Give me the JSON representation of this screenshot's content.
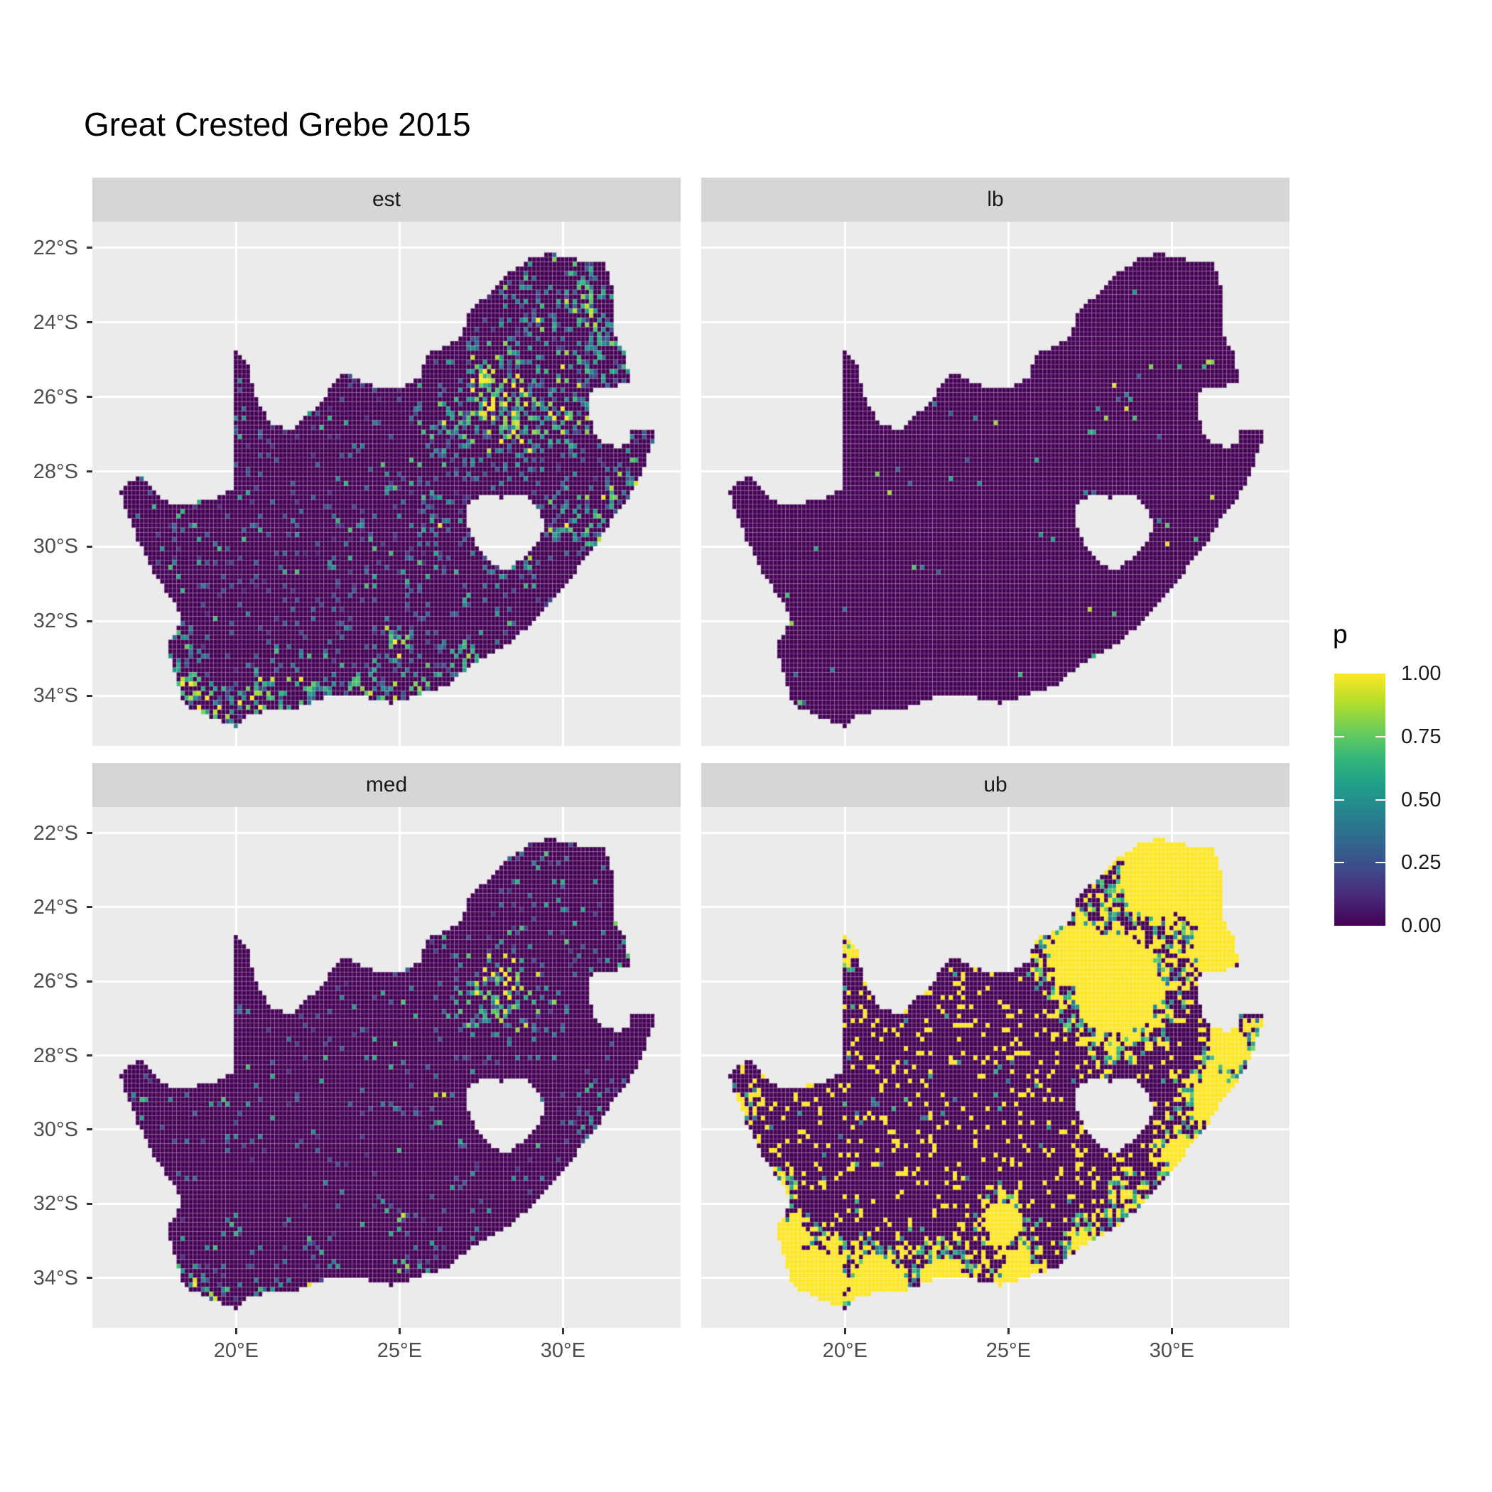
{
  "chart_data": {
    "type": "heatmap",
    "subtype": "faceted-raster-map",
    "title": "Great Crested Grebe 2015",
    "region": "South Africa",
    "facets": [
      {
        "label": "est"
      },
      {
        "label": "lb"
      },
      {
        "label": "med"
      },
      {
        "label": "ub"
      }
    ],
    "axes": {
      "x": {
        "range_deg_east": [
          15.6,
          33.6
        ],
        "ticks": [
          {
            "value": 20,
            "label": "20°E"
          },
          {
            "value": 25,
            "label": "25°E"
          },
          {
            "value": 30,
            "label": "30°E"
          }
        ]
      },
      "y": {
        "range_deg_south": [
          21.3,
          35.35
        ],
        "ticks": [
          {
            "value": 22,
            "label": "22°S"
          },
          {
            "value": 24,
            "label": "24°S"
          },
          {
            "value": 26,
            "label": "26°S"
          },
          {
            "value": 28,
            "label": "28°S"
          },
          {
            "value": 30,
            "label": "30°S"
          },
          {
            "value": 32,
            "label": "32°S"
          },
          {
            "value": 34,
            "label": "34°S"
          }
        ]
      }
    },
    "legend": {
      "title": "p",
      "min": 0,
      "max": 1,
      "ticks": [
        {
          "value": 1.0,
          "label": "1.00"
        },
        {
          "value": 0.75,
          "label": "0.75"
        },
        {
          "value": 0.5,
          "label": "0.50"
        },
        {
          "value": 0.25,
          "label": "0.25"
        },
        {
          "value": 0.0,
          "label": "0.00"
        }
      ],
      "palette": "viridis"
    },
    "colors": {
      "panel_bg": "#ebebeb",
      "strip_bg": "#d6d6d6",
      "grid": "#ffffff",
      "title_text": "#000000",
      "strip_text": "#1a1a1a",
      "axis_text": "#4d4d4d",
      "tick_mark": "#333333",
      "viridis_stops": [
        "#440154",
        "#482878",
        "#3e4989",
        "#31688e",
        "#26828e",
        "#1f9e89",
        "#35b779",
        "#6ece58",
        "#b5de2b",
        "#fde725"
      ]
    },
    "cell_size_deg": 0.125,
    "outline_lon_lat": [
      [
        16.45,
        -28.58
      ],
      [
        16.8,
        -28.25
      ],
      [
        17.15,
        -28.1
      ],
      [
        17.45,
        -28.4
      ],
      [
        17.75,
        -28.75
      ],
      [
        18.25,
        -28.9
      ],
      [
        18.85,
        -28.8
      ],
      [
        19.4,
        -28.7
      ],
      [
        19.98,
        -28.45
      ],
      [
        19.98,
        -24.77
      ],
      [
        20.35,
        -25.1
      ],
      [
        20.5,
        -25.65
      ],
      [
        20.65,
        -26.1
      ],
      [
        21.05,
        -26.7
      ],
      [
        21.7,
        -26.9
      ],
      [
        22.25,
        -26.4
      ],
      [
        22.7,
        -26.1
      ],
      [
        22.9,
        -25.65
      ],
      [
        23.3,
        -25.35
      ],
      [
        23.85,
        -25.6
      ],
      [
        24.45,
        -25.75
      ],
      [
        25.05,
        -25.73
      ],
      [
        25.6,
        -25.47
      ],
      [
        25.92,
        -24.78
      ],
      [
        26.5,
        -24.65
      ],
      [
        26.9,
        -24.3
      ],
      [
        27.2,
        -23.6
      ],
      [
        27.8,
        -23.22
      ],
      [
        28.35,
        -22.68
      ],
      [
        29.1,
        -22.22
      ],
      [
        29.7,
        -22.15
      ],
      [
        30.3,
        -22.3
      ],
      [
        31.3,
        -22.4
      ],
      [
        31.55,
        -23.2
      ],
      [
        31.55,
        -24.3
      ],
      [
        31.95,
        -24.9
      ],
      [
        32.02,
        -25.65
      ],
      [
        31.4,
        -25.72
      ],
      [
        30.82,
        -25.85
      ],
      [
        30.78,
        -26.4
      ],
      [
        30.95,
        -26.9
      ],
      [
        31.15,
        -27.2
      ],
      [
        31.6,
        -27.32
      ],
      [
        31.97,
        -27.3
      ],
      [
        32.12,
        -26.85
      ],
      [
        32.89,
        -26.86
      ],
      [
        32.55,
        -27.65
      ],
      [
        32.3,
        -28.35
      ],
      [
        31.75,
        -28.95
      ],
      [
        31.05,
        -29.9
      ],
      [
        30.4,
        -30.65
      ],
      [
        29.75,
        -31.35
      ],
      [
        29.0,
        -32.1
      ],
      [
        28.2,
        -32.7
      ],
      [
        27.35,
        -33.1
      ],
      [
        26.4,
        -33.75
      ],
      [
        25.65,
        -33.95
      ],
      [
        24.8,
        -34.2
      ],
      [
        23.65,
        -33.98
      ],
      [
        22.5,
        -34.08
      ],
      [
        21.75,
        -34.4
      ],
      [
        20.5,
        -34.45
      ],
      [
        20.0,
        -34.82
      ],
      [
        19.3,
        -34.62
      ],
      [
        18.8,
        -34.4
      ],
      [
        18.45,
        -34.3
      ],
      [
        18.35,
        -34.05
      ],
      [
        18.05,
        -33.2
      ],
      [
        17.85,
        -32.75
      ],
      [
        18.3,
        -32.05
      ],
      [
        18.2,
        -31.6
      ],
      [
        17.6,
        -30.9
      ],
      [
        17.05,
        -29.95
      ],
      [
        16.75,
        -29.3
      ],
      [
        16.45,
        -28.58
      ]
    ],
    "hole_lesotho_lon_lat": [
      [
        27.02,
        -28.92
      ],
      [
        27.55,
        -28.6
      ],
      [
        28.15,
        -28.7
      ],
      [
        28.72,
        -28.55
      ],
      [
        29.15,
        -28.92
      ],
      [
        29.45,
        -29.32
      ],
      [
        29.33,
        -29.78
      ],
      [
        28.95,
        -30.18
      ],
      [
        28.3,
        -30.62
      ],
      [
        28.05,
        -30.55
      ],
      [
        27.72,
        -30.38
      ],
      [
        27.35,
        -29.95
      ],
      [
        27.05,
        -29.45
      ]
    ],
    "facet_fields": {
      "est": {
        "seed": 11,
        "mode": "spread",
        "gain": 0.6,
        "speckle": 0.05,
        "hotspots": [
          [
            28.1,
            -26.15,
            1.25,
            1.0
          ],
          [
            27.6,
            -25.7,
            0.8,
            0.8
          ],
          [
            28.6,
            -24.9,
            0.9,
            0.45
          ],
          [
            29.9,
            -26.5,
            0.9,
            0.5
          ],
          [
            28.9,
            -26.9,
            1.0,
            0.65
          ],
          [
            26.9,
            -26.9,
            0.9,
            0.6
          ],
          [
            29.3,
            -23.6,
            1.1,
            0.45
          ],
          [
            30.9,
            -23.3,
            1.0,
            0.5
          ],
          [
            31.2,
            -24.8,
            0.9,
            0.5
          ],
          [
            30.2,
            -25.5,
            0.8,
            0.5
          ],
          [
            31.0,
            -29.6,
            0.8,
            0.6
          ],
          [
            31.7,
            -28.5,
            0.7,
            0.5
          ],
          [
            30.1,
            -29.4,
            0.6,
            0.5
          ],
          [
            26.2,
            -29.1,
            0.45,
            0.55
          ],
          [
            24.9,
            -32.55,
            0.45,
            0.8
          ],
          [
            18.55,
            -33.95,
            0.65,
            0.9
          ],
          [
            19.4,
            -34.5,
            0.8,
            0.7
          ],
          [
            20.8,
            -34.3,
            0.9,
            0.6
          ],
          [
            22.3,
            -34.05,
            0.8,
            0.6
          ],
          [
            23.9,
            -33.95,
            0.7,
            0.55
          ],
          [
            25.5,
            -33.85,
            0.7,
            0.6
          ],
          [
            27.0,
            -33.1,
            0.7,
            0.5
          ],
          [
            18.2,
            -32.6,
            0.5,
            0.45
          ],
          [
            28.4,
            -30.4,
            0.7,
            0.4
          ]
        ]
      },
      "lb": {
        "seed": 22,
        "mode": "sparse",
        "gain": 0.25,
        "speckle": 0.006,
        "hotspots": [
          [
            28.15,
            -26.1,
            0.8,
            0.55
          ],
          [
            18.6,
            -34.0,
            0.5,
            0.3
          ],
          [
            20.8,
            -34.3,
            0.6,
            0.25
          ],
          [
            25.5,
            -33.9,
            0.5,
            0.25
          ],
          [
            31.0,
            -29.7,
            0.5,
            0.25
          ],
          [
            31.3,
            -24.9,
            0.6,
            0.2
          ]
        ]
      },
      "med": {
        "seed": 33,
        "mode": "spread",
        "gain": 0.42,
        "speckle": 0.022,
        "hotspots": [
          [
            28.1,
            -26.15,
            1.1,
            0.9
          ],
          [
            27.0,
            -26.9,
            0.8,
            0.45
          ],
          [
            29.0,
            -26.6,
            0.8,
            0.45
          ],
          [
            29.4,
            -23.7,
            1.0,
            0.3
          ],
          [
            31.0,
            -24.9,
            0.9,
            0.33
          ],
          [
            31.0,
            -29.6,
            0.7,
            0.45
          ],
          [
            26.2,
            -29.1,
            0.4,
            0.4
          ],
          [
            24.9,
            -32.55,
            0.45,
            0.6
          ],
          [
            18.55,
            -33.95,
            0.6,
            0.65
          ],
          [
            20.8,
            -34.3,
            0.8,
            0.45
          ],
          [
            22.3,
            -34.05,
            0.7,
            0.42
          ],
          [
            25.5,
            -33.85,
            0.6,
            0.45
          ],
          [
            19.4,
            -34.5,
            0.7,
            0.5
          ],
          [
            27.0,
            -33.15,
            0.5,
            0.35
          ]
        ]
      },
      "ub": {
        "seed": 44,
        "mode": "binary",
        "gain": 1.0,
        "speckle": 0.1,
        "hotspots": [
          [
            28.3,
            -26.1,
            1.7,
            1.0
          ],
          [
            27.2,
            -25.3,
            1.2,
            0.9
          ],
          [
            29.5,
            -23.2,
            1.6,
            0.85
          ],
          [
            31.0,
            -23.5,
            1.4,
            0.85
          ],
          [
            31.4,
            -25.0,
            1.2,
            0.8
          ],
          [
            30.5,
            -22.7,
            1.2,
            0.85
          ],
          [
            31.8,
            -27.8,
            1.0,
            0.75
          ],
          [
            31.3,
            -29.2,
            1.1,
            0.8
          ],
          [
            30.3,
            -30.6,
            0.9,
            0.7
          ],
          [
            28.6,
            -32.0,
            0.8,
            0.5
          ],
          [
            24.85,
            -32.5,
            0.75,
            0.95
          ],
          [
            19.0,
            -34.2,
            1.3,
            1.0
          ],
          [
            21.0,
            -34.3,
            1.2,
            0.9
          ],
          [
            23.0,
            -34.1,
            1.0,
            0.85
          ],
          [
            25.3,
            -33.9,
            0.9,
            0.8
          ],
          [
            18.3,
            -33.0,
            0.8,
            0.75
          ],
          [
            17.9,
            -31.6,
            0.7,
            0.5
          ],
          [
            27.3,
            -33.0,
            0.7,
            0.6
          ],
          [
            20.2,
            -25.2,
            0.5,
            0.6
          ],
          [
            16.8,
            -29.3,
            0.6,
            0.6
          ]
        ]
      }
    }
  }
}
